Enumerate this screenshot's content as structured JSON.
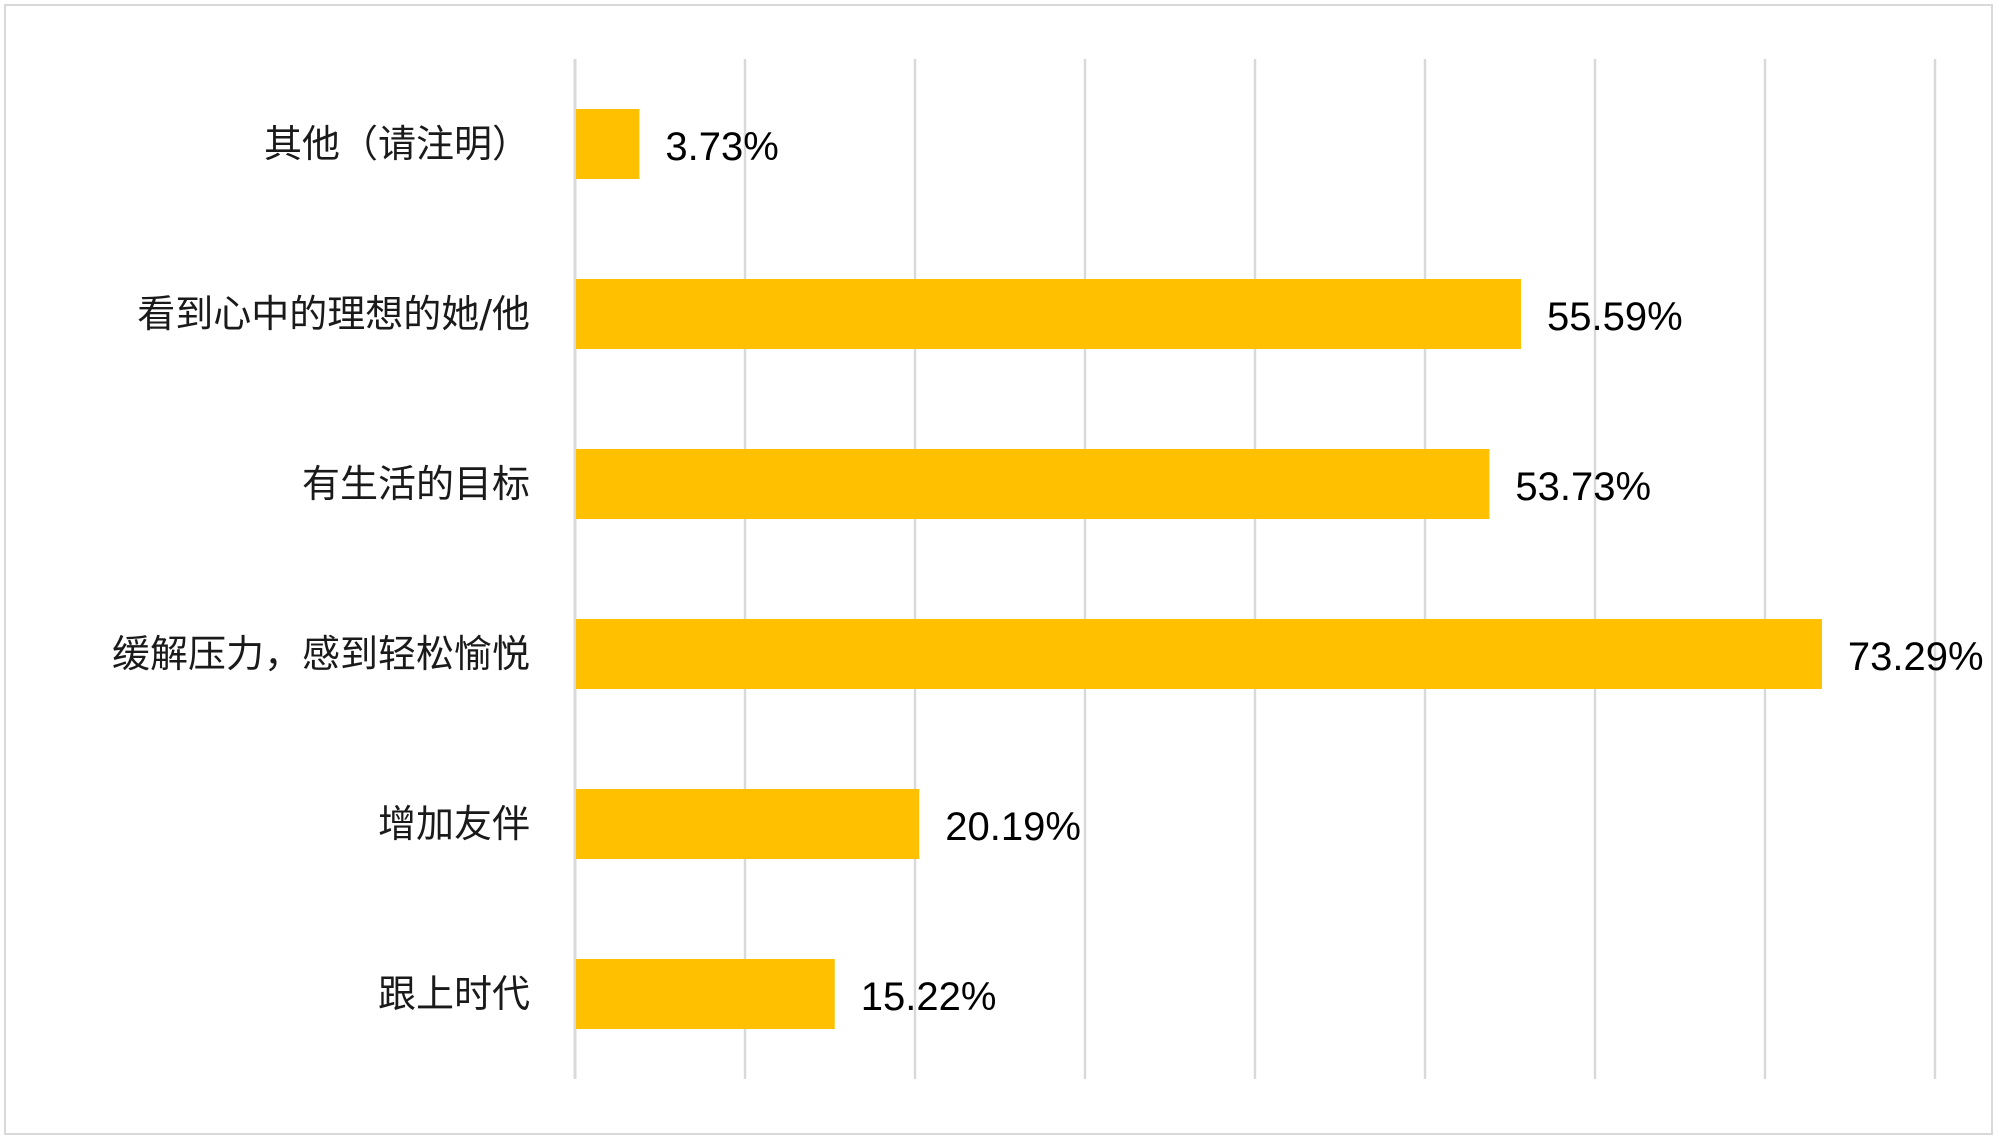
{
  "chart_data": {
    "type": "bar",
    "orientation": "horizontal",
    "categories": [
      "其他（请注明）",
      "看到心中的理想的她/他",
      "有生活的目标",
      "缓解压力，感到轻松愉悦",
      "增加友伴",
      "跟上时代"
    ],
    "values": [
      3.73,
      55.59,
      53.73,
      73.29,
      20.19,
      15.22
    ],
    "data_labels": [
      "3.73%",
      "55.59%",
      "53.73%",
      "73.29%",
      "20.19%",
      "15.22%"
    ],
    "title": "",
    "xlabel": "",
    "ylabel": "",
    "xlim": [
      0,
      80
    ],
    "gridlines_step": 10,
    "grid": true,
    "legend": "none",
    "bar_color": "#FFC000"
  }
}
